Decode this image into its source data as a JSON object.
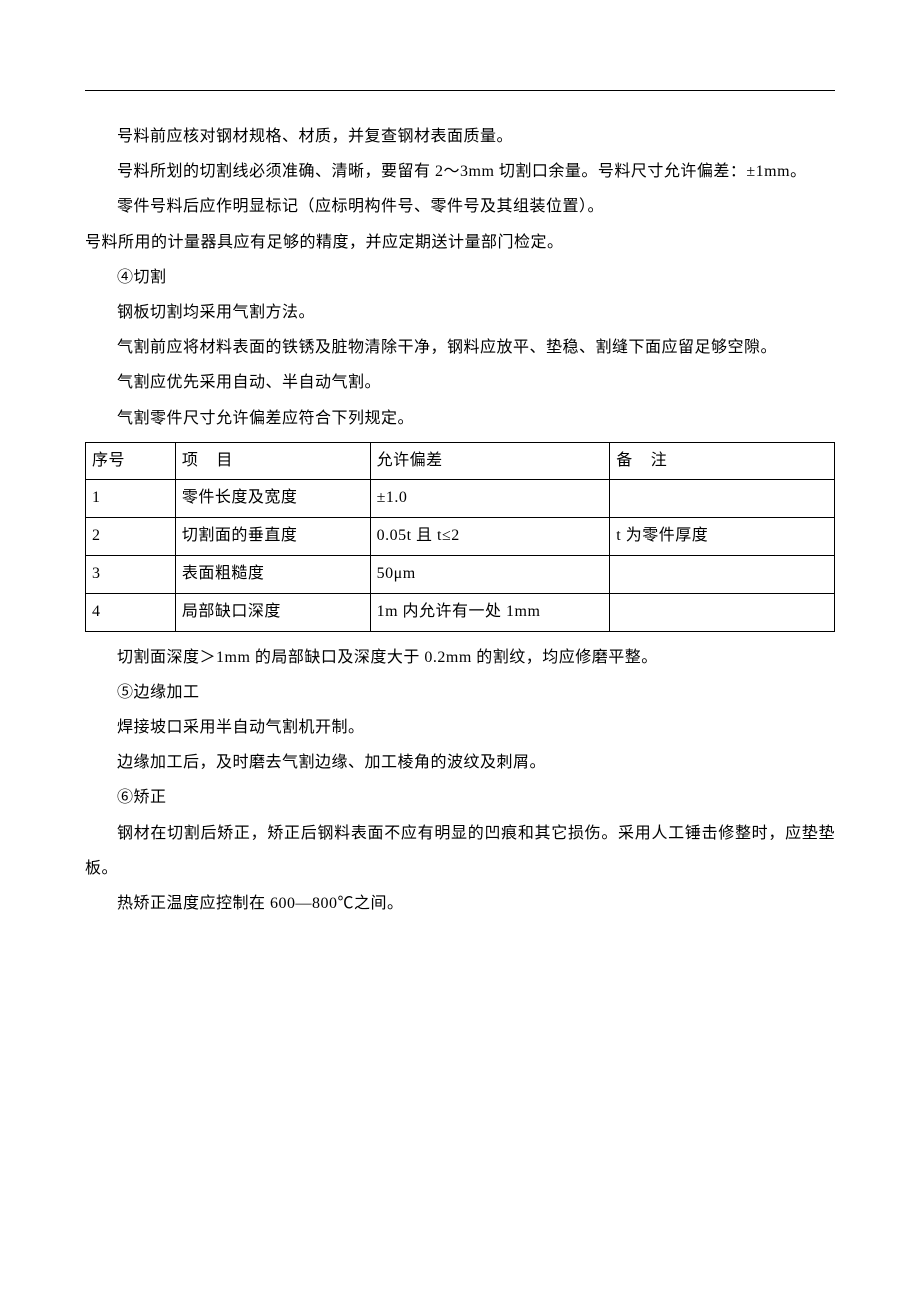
{
  "paragraphs": {
    "p1": "号料前应核对钢材规格、材质，并复查钢材表面质量。",
    "p2": "号料所划的切割线必须准确、清晰，要留有 2～3mm 切割口余量。号料尺寸允许偏差：±1mm。",
    "p3": "零件号料后应作明显标记（应标明构件号、零件号及其组装位置）。",
    "p4": "号料所用的计量器具应有足够的精度，并应定期送计量部门检定。",
    "p5": "④切割",
    "p6": "钢板切割均采用气割方法。",
    "p7": "气割前应将材料表面的铁锈及脏物清除干净，钢料应放平、垫稳、割缝下面应留足够空隙。",
    "p8": "气割应优先采用自动、半自动气割。",
    "p9": "气割零件尺寸允许偏差应符合下列规定。",
    "p10": "切割面深度＞1mm 的局部缺口及深度大于 0.2mm 的割纹，均应修磨平整。",
    "p11": "⑤边缘加工",
    "p12": "焊接坡口采用半自动气割机开制。",
    "p13": "边缘加工后，及时磨去气割边缘、加工棱角的波纹及刺屑。",
    "p14": "⑥矫正",
    "p15": "钢材在切割后矫正，矫正后钢料表面不应有明显的凹痕和其它损伤。采用人工锤击修整时，应垫垫板。",
    "p16": "热矫正温度应控制在 600—800℃之间。"
  },
  "table": {
    "headers": {
      "seq": "序号",
      "item_prefix": "项",
      "item_suffix": "目",
      "tolerance": "允许偏差",
      "note_prefix": "备",
      "note_suffix": "注"
    },
    "rows": [
      {
        "seq": "1",
        "item": "零件长度及宽度",
        "tolerance": "±1.0",
        "note": ""
      },
      {
        "seq": "2",
        "item": "切割面的垂直度",
        "tolerance": "0.05t 且 t≤2",
        "note": "t 为零件厚度"
      },
      {
        "seq": "3",
        "item": "表面粗糙度",
        "tolerance": "50μm",
        "note": ""
      },
      {
        "seq": "4",
        "item": "局部缺口深度",
        "tolerance": "1m 内允许有一处 1mm",
        "note": ""
      }
    ]
  }
}
